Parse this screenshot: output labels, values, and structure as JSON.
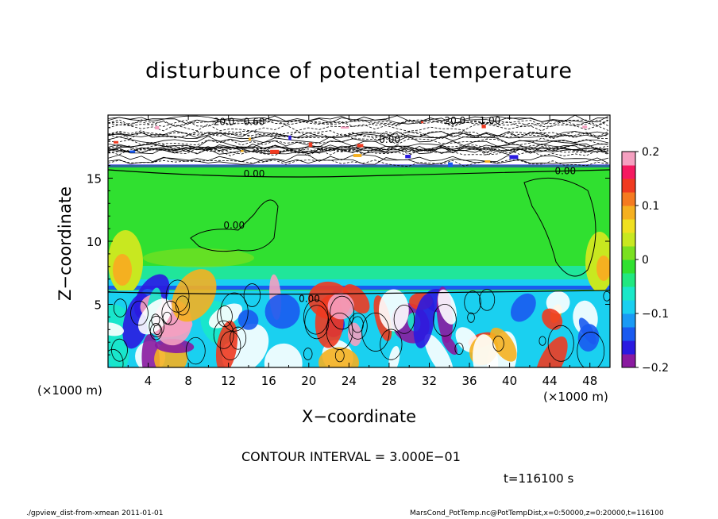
{
  "chart_data": {
    "type": "heatmap",
    "title": "disturbunce of potential temperature",
    "xlabel": "X−coordinate",
    "ylabel": "Z−coordinate",
    "x_unit": "(×1000 m)",
    "xlim": [
      0,
      50
    ],
    "ylim": [
      0,
      20
    ],
    "x_ticks": [
      4,
      8,
      12,
      16,
      20,
      24,
      28,
      32,
      36,
      40,
      44,
      48
    ],
    "y_ticks": [
      5,
      10,
      15
    ],
    "colorbar": {
      "range": [
        -0.2,
        0.2
      ],
      "ticks": [
        "0.2",
        "0.1",
        "0",
        "−0.1",
        "−0.2"
      ],
      "colors": [
        "#8a1aa0",
        "#2a1ae0",
        "#1a5af0",
        "#1a9af5",
        "#1ad0f0",
        "#1ae8c8",
        "#20e880",
        "#30e030",
        "#7ae020",
        "#c8e820",
        "#f0e020",
        "#f5b020",
        "#f57a20",
        "#f03a20",
        "#f51a60",
        "#f5a0c0"
      ]
    },
    "contour_labels": [
      "0.00",
      "0.00",
      "0.00",
      "0.00",
      "0.00",
      "20.0",
      "0.60",
      "20.0",
      "1.00"
    ],
    "contour_interval": "CONTOUR INTERVAL = 3.000E−01"
  },
  "time_label": "t=116100 s",
  "footer": {
    "left": "./gpview_dist-from-xmean  2011-01-01",
    "right": "MarsCond_PotTemp.nc@PotTempDist,x=0:50000,z=0:20000,t=116100"
  }
}
